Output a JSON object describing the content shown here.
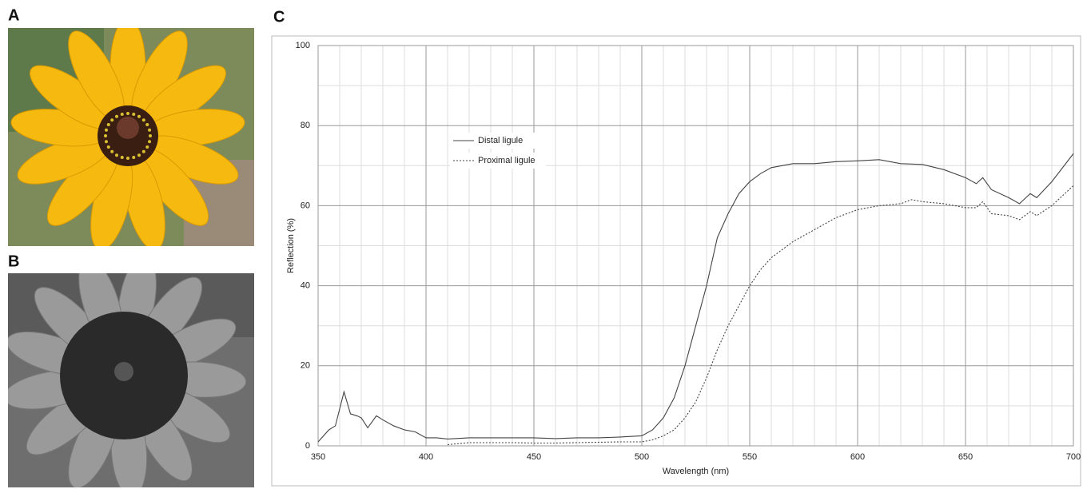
{
  "panel_labels": {
    "a": "A",
    "b": "B",
    "c": "C"
  },
  "chart_data": {
    "type": "line",
    "xlabel": "Wavelength (nm)",
    "ylabel": "Reflection (%)",
    "xlim": [
      350,
      700
    ],
    "ylim": [
      0,
      100
    ],
    "xticks": [
      350,
      400,
      450,
      500,
      550,
      600,
      650,
      700
    ],
    "yticks": [
      0,
      20,
      40,
      60,
      80,
      100
    ],
    "xminorticks": [
      360,
      370,
      380,
      390,
      410,
      420,
      430,
      440,
      460,
      470,
      480,
      490,
      510,
      520,
      530,
      540,
      560,
      570,
      580,
      590,
      610,
      620,
      630,
      640,
      660,
      670,
      680,
      690
    ],
    "yminorticks": [
      10,
      30,
      50,
      70,
      90
    ],
    "grid": true,
    "legend": "upper left",
    "series": [
      {
        "name": "Distal ligule",
        "color": "#444444",
        "dash": "solid",
        "x": [
          350,
          355,
          358,
          362,
          365,
          368,
          370,
          373,
          377,
          380,
          385,
          390,
          395,
          400,
          405,
          410,
          420,
          430,
          440,
          450,
          460,
          470,
          480,
          490,
          500,
          505,
          510,
          515,
          520,
          525,
          530,
          535,
          540,
          545,
          550,
          555,
          560,
          570,
          580,
          590,
          600,
          610,
          620,
          630,
          640,
          650,
          655,
          658,
          662,
          670,
          675,
          678,
          680,
          683,
          690,
          700
        ],
        "values": [
          1,
          4,
          5,
          13.5,
          8,
          7.5,
          7,
          4.5,
          7.5,
          6.5,
          5,
          4,
          3.5,
          2,
          2,
          1.7,
          2,
          2,
          2,
          2,
          1.8,
          2,
          2,
          2.2,
          2.5,
          4,
          7,
          12,
          20,
          30,
          40,
          52,
          58,
          63,
          66,
          68,
          69.5,
          70.5,
          70.5,
          71,
          71.2,
          71.5,
          70.5,
          70.3,
          69,
          67,
          65.5,
          67,
          64,
          62,
          60.5,
          62,
          63,
          62,
          66,
          73
        ]
      },
      {
        "name": "Proximal ligule",
        "color": "#444444",
        "dash": "dotted",
        "x": [
          410,
          420,
          430,
          440,
          450,
          460,
          470,
          480,
          490,
          500,
          505,
          510,
          515,
          520,
          525,
          530,
          535,
          540,
          545,
          550,
          555,
          560,
          570,
          580,
          590,
          600,
          610,
          620,
          625,
          630,
          640,
          650,
          655,
          658,
          662,
          670,
          675,
          680,
          683,
          690,
          700
        ],
        "values": [
          0.3,
          0.8,
          0.8,
          0.8,
          0.7,
          0.7,
          0.8,
          0.9,
          1,
          1,
          1.5,
          2.5,
          4,
          7,
          11,
          17,
          24,
          30,
          35,
          40,
          44,
          47,
          51,
          54,
          57,
          59,
          60,
          60.5,
          61.5,
          61,
          60.5,
          59.5,
          59.5,
          61,
          58,
          57.5,
          56.5,
          58.5,
          57.5,
          60,
          65
        ]
      }
    ]
  }
}
